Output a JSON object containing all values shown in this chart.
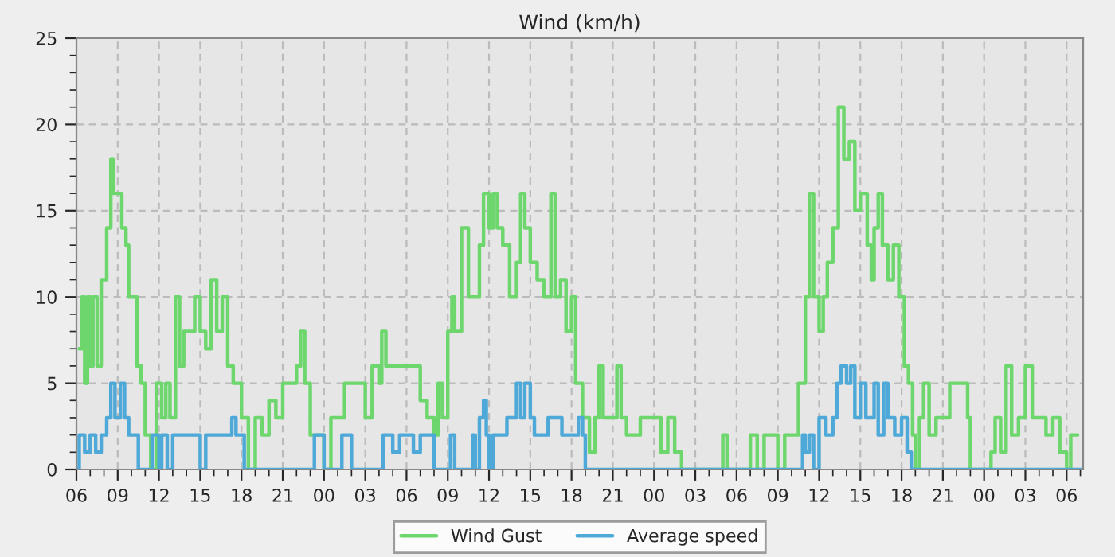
{
  "chart_data": {
    "type": "step",
    "title": "Wind (km/h)",
    "xlim": [
      6,
      79.2
    ],
    "ylim": [
      0,
      25
    ],
    "yticks": [
      0,
      5,
      10,
      15,
      20,
      25
    ],
    "xticks": [
      {
        "value": 6,
        "label": "06"
      },
      {
        "value": 9,
        "label": "09"
      },
      {
        "value": 12,
        "label": "12"
      },
      {
        "value": 15,
        "label": "15"
      },
      {
        "value": 18,
        "label": "18"
      },
      {
        "value": 21,
        "label": "21"
      },
      {
        "value": 24,
        "label": "00"
      },
      {
        "value": 27,
        "label": "03"
      },
      {
        "value": 30,
        "label": "06"
      },
      {
        "value": 33,
        "label": "09"
      },
      {
        "value": 36,
        "label": "12"
      },
      {
        "value": 39,
        "label": "15"
      },
      {
        "value": 42,
        "label": "18"
      },
      {
        "value": 45,
        "label": "21"
      },
      {
        "value": 48,
        "label": "00"
      },
      {
        "value": 51,
        "label": "03"
      },
      {
        "value": 54,
        "label": "06"
      },
      {
        "value": 57,
        "label": "09"
      },
      {
        "value": 60,
        "label": "12"
      },
      {
        "value": 63,
        "label": "15"
      },
      {
        "value": 66,
        "label": "18"
      },
      {
        "value": 69,
        "label": "21"
      },
      {
        "value": 72,
        "label": "00"
      },
      {
        "value": 75,
        "label": "03"
      },
      {
        "value": 78,
        "label": "06"
      }
    ],
    "grid": true,
    "legend": "bottom",
    "line_style": "solid",
    "series": [
      {
        "name": "Wind Gust",
        "color": "#6dd66d",
        "x": [
          6.2,
          6.4,
          6.6,
          6.8,
          7.0,
          7.2,
          7.5,
          7.8,
          8.0,
          8.2,
          8.5,
          8.7,
          9.0,
          9.3,
          9.6,
          9.8,
          10.2,
          10.4,
          10.7,
          11,
          11.4,
          11.8,
          12.2,
          12.5,
          12.8,
          13.2,
          13.5,
          13.8,
          14.2,
          14.6,
          15,
          15.4,
          15.8,
          16.2,
          16.6,
          17,
          17.4,
          18,
          18.5,
          19,
          19.5,
          20,
          20.5,
          21,
          22,
          22.3,
          22.6,
          23,
          24,
          24.5,
          25,
          25.5,
          27,
          27.5,
          28,
          28.2,
          28.5,
          31,
          31.5,
          32,
          32.3,
          32.6,
          33,
          33.3,
          33.5,
          34,
          34.5,
          35.3,
          35.6,
          36,
          36.3,
          36.6,
          37,
          37.5,
          38,
          38.3,
          38.6,
          39,
          39.5,
          40,
          40.5,
          40.8,
          41.2,
          41.6,
          42,
          42.3,
          42.8,
          43.3,
          43.7,
          44,
          44.3,
          45.3,
          45.6,
          46,
          47,
          48.5,
          49,
          49.5,
          50,
          53,
          53.3,
          55,
          55.5,
          56,
          57,
          57.5,
          58.5,
          59,
          59.3,
          59.6,
          60,
          60.3,
          60.6,
          61,
          61.4,
          61.8,
          62.2,
          62.6,
          63,
          63.5,
          63.8,
          64,
          64.3,
          64.6,
          65,
          65.4,
          65.8,
          66.2,
          66.5,
          66.8,
          67,
          67.3,
          67.6,
          68,
          68.5,
          69.5,
          70.8,
          71,
          72.5,
          72.8,
          73.2,
          73.6,
          74,
          74.5,
          75,
          75.5,
          76.5,
          77,
          77.5,
          78,
          78.3,
          78.8
        ],
        "values": [
          7,
          10,
          5,
          10,
          6,
          10,
          6,
          11,
          11,
          14,
          18,
          16,
          16,
          14,
          13,
          10,
          10,
          6,
          5,
          2,
          0,
          5,
          3,
          5,
          3,
          10,
          6,
          8,
          8,
          10,
          8,
          7,
          11,
          8,
          10,
          6,
          5,
          3,
          0,
          3,
          2,
          4,
          3,
          5,
          6,
          8,
          5,
          2,
          0,
          3,
          3,
          5,
          3,
          6,
          5,
          8,
          6,
          4,
          3,
          2,
          5,
          3,
          8,
          10,
          8,
          14,
          10,
          13,
          16,
          14,
          16,
          14,
          13,
          10,
          12,
          16,
          14,
          12,
          11,
          10,
          16,
          10,
          11,
          8,
          10,
          5,
          3,
          1,
          3,
          6,
          3,
          6,
          3,
          2,
          3,
          1,
          3,
          1,
          0,
          2,
          0,
          2,
          0,
          2,
          0,
          2,
          5,
          10,
          16,
          10,
          8,
          10,
          12,
          14,
          21,
          18,
          19,
          15,
          16,
          13,
          11,
          14,
          16,
          13,
          11,
          13,
          10,
          6,
          5,
          2,
          0,
          3,
          5,
          2,
          3,
          5,
          3,
          0,
          1,
          3,
          1,
          6,
          2,
          3,
          6,
          3,
          2,
          3,
          1,
          0,
          2,
          2
        ]
      },
      {
        "name": "Average speed",
        "color": "#4ea9d8",
        "x": [
          6,
          6.2,
          6.6,
          7,
          7.4,
          7.8,
          8.2,
          8.5,
          8.8,
          9.2,
          9.5,
          9.8,
          10.5,
          11.5,
          12,
          12.2,
          12.6,
          13,
          15,
          15.4,
          17,
          17.3,
          17.6,
          18.2,
          23.3,
          24,
          25.3,
          26,
          28.3,
          29,
          29.5,
          30.5,
          31,
          32,
          33.2,
          33.5,
          34.8,
          35,
          35.3,
          35.6,
          35.8,
          36,
          36.3,
          37.3,
          38,
          38.3,
          38.6,
          39,
          39.3,
          40.3,
          41.3,
          42.5,
          42.8,
          43,
          58.8,
          59,
          59.3,
          59.6,
          60,
          60.5,
          61,
          61.3,
          61.6,
          62,
          62.3,
          62.6,
          63,
          63.4,
          64,
          64.3,
          64.7,
          65,
          65.5,
          66,
          66.4,
          66.7,
          79.2
        ],
        "values": [
          0,
          2,
          1,
          2,
          1,
          2,
          3,
          5,
          3,
          5,
          3,
          2,
          0,
          2,
          0,
          2,
          0,
          2,
          0,
          2,
          2,
          3,
          2,
          0,
          2,
          0,
          2,
          0,
          2,
          1,
          2,
          1,
          2,
          0,
          2,
          0,
          2,
          0,
          3,
          4,
          2,
          0,
          2,
          3,
          5,
          3,
          5,
          3,
          2,
          3,
          2,
          3,
          2,
          0,
          2,
          1,
          2,
          0,
          3,
          2,
          3,
          5,
          6,
          5,
          6,
          3,
          5,
          3,
          5,
          2,
          5,
          3,
          2,
          3,
          1,
          0,
          0
        ]
      }
    ]
  }
}
